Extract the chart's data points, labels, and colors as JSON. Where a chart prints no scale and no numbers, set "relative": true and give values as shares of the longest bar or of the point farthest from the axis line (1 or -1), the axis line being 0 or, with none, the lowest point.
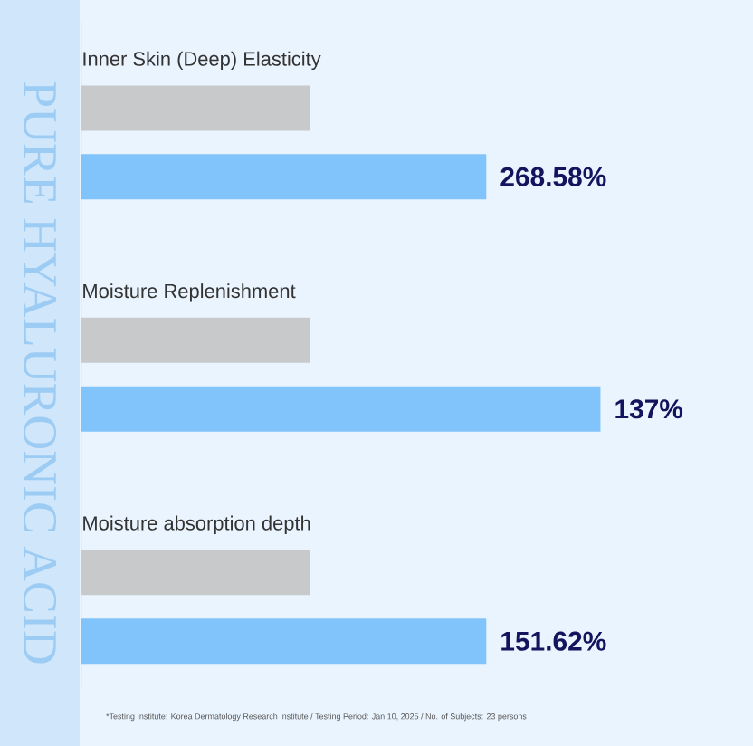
{
  "chart_data": {
    "type": "bar",
    "orientation": "horizontal",
    "relative": true,
    "categories": [
      "Inner Skin (Deep) Elasticity",
      "Moisture Replenishment",
      "Moisture absorption depth"
    ],
    "series": [
      {
        "color": "#c8c9cb",
        "values": [
          0.44,
          0.44,
          0.44
        ]
      },
      {
        "color": "#80c4fb",
        "values": [
          0.78,
          1,
          0.78
        ]
      }
    ],
    "annotations": [
      "PURE HYALURONIC ACID",
      "*Testing Institute: Korea Dermatology Research Institute / Testing Period: Jan 10, 2025 / No. of Subjects: 23 persons",
      "268.58%",
      "137%",
      "151.62%"
    ]
  }
}
